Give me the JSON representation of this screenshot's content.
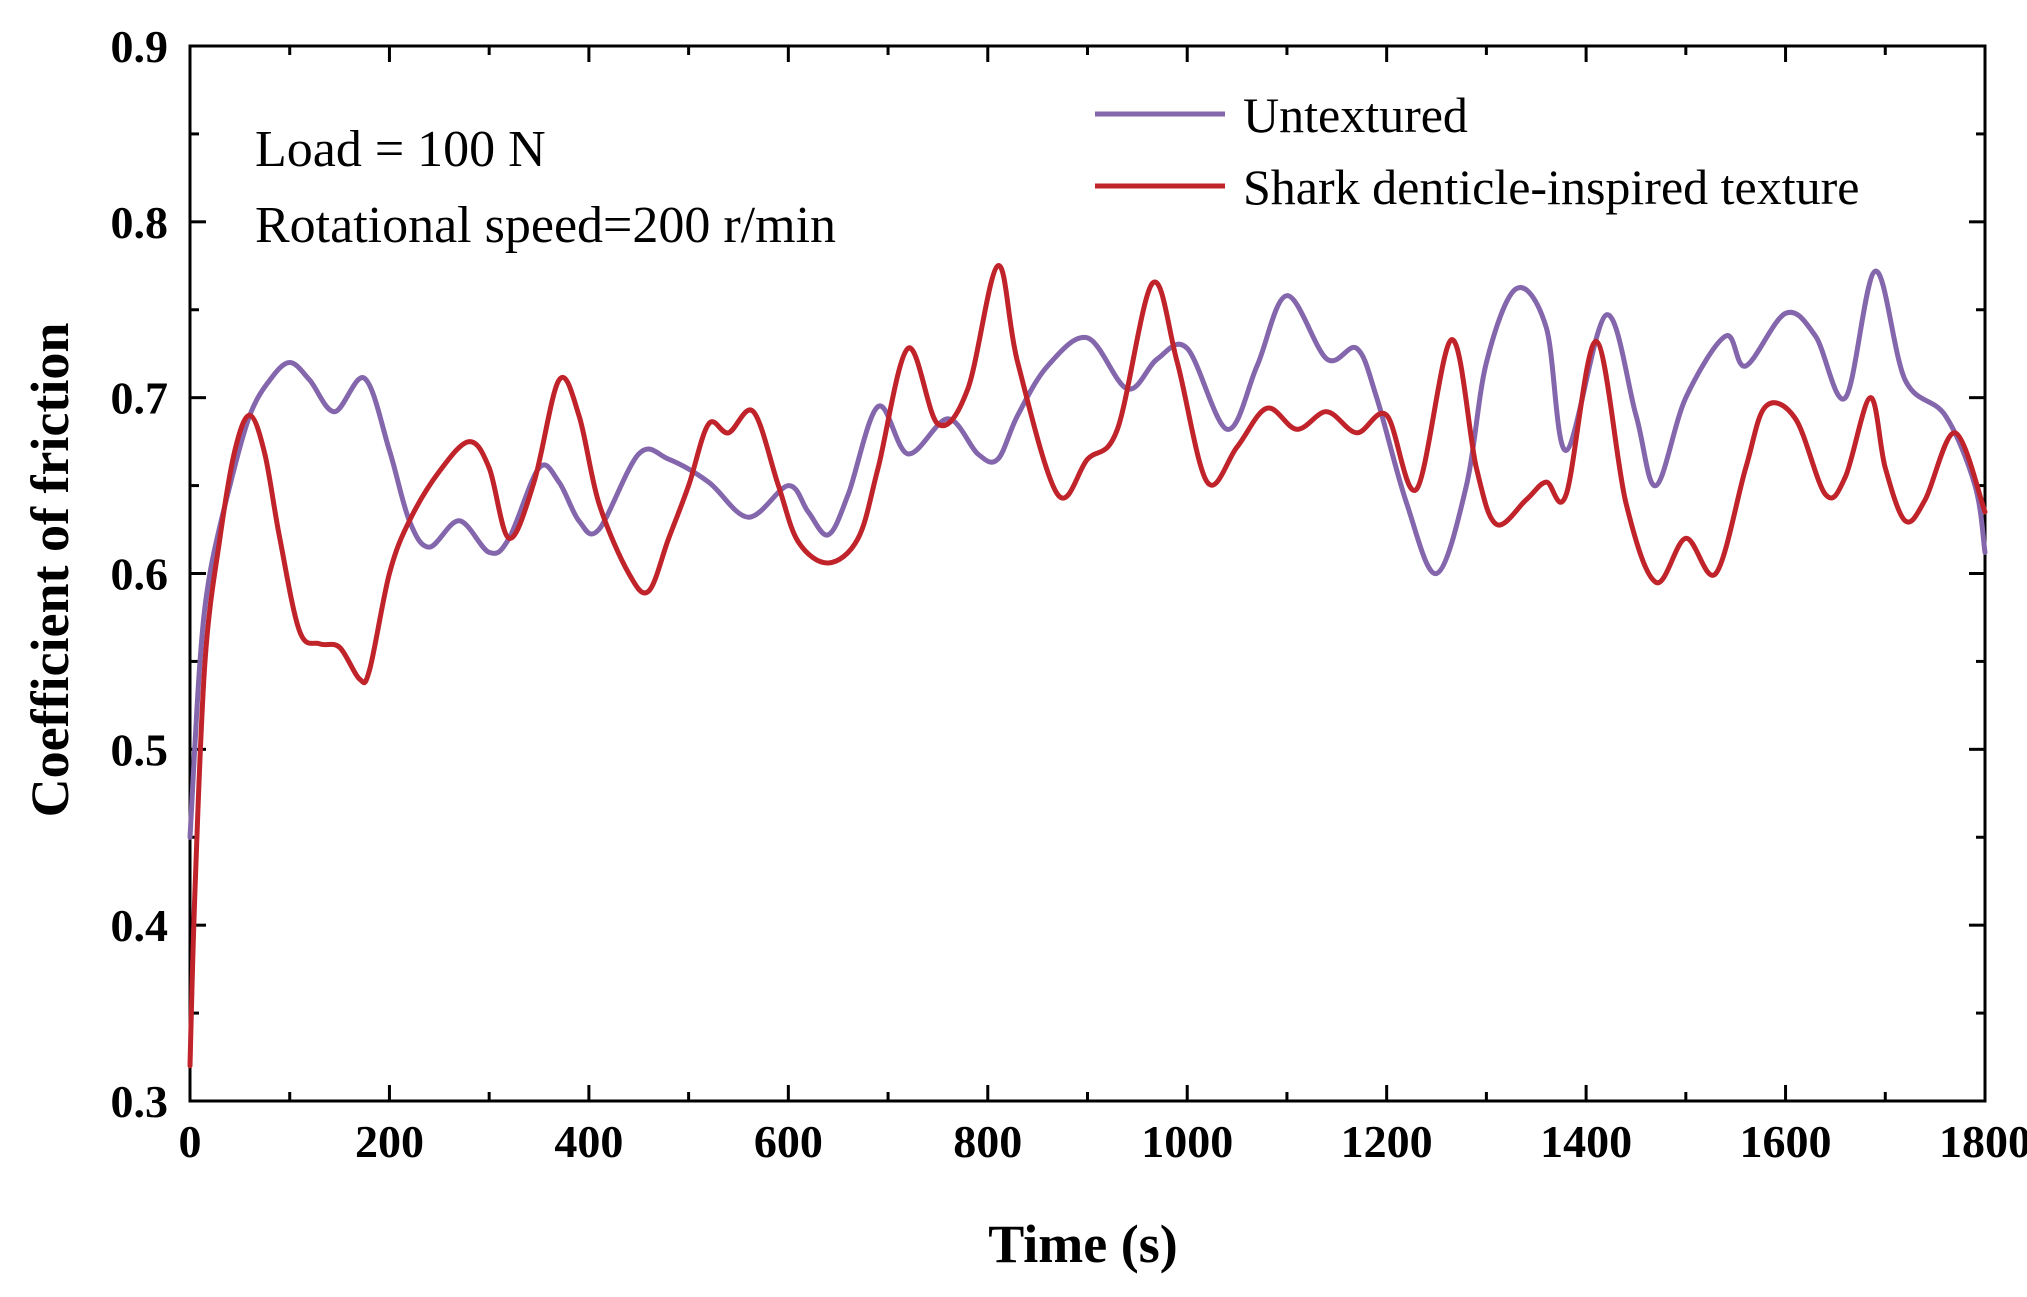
{
  "chart_data": {
    "type": "line",
    "title": "",
    "xlabel": "Time (s)",
    "ylabel": "Coefficient of friction",
    "xlim": [
      0,
      1800
    ],
    "ylim": [
      0.3,
      0.9
    ],
    "x_ticks": [
      0,
      200,
      400,
      600,
      800,
      1000,
      1200,
      1400,
      1600,
      1800
    ],
    "y_ticks": [
      0.3,
      0.4,
      0.5,
      0.6,
      0.7,
      0.8,
      0.9
    ],
    "x_tick_labels": [
      "0",
      "200",
      "400",
      "600",
      "800",
      "1000",
      "1200",
      "1400",
      "1600",
      "1800"
    ],
    "y_tick_labels": [
      "0.3",
      "0.4",
      "0.5",
      "0.6",
      "0.7",
      "0.8",
      "0.9"
    ],
    "annotations": [
      "Load = 100 N",
      "Rotational speed=200 r/min"
    ],
    "legend_position": "top-right",
    "series": [
      {
        "name": "Untextured",
        "color": "#8466ad",
        "x": [
          0,
          10,
          20,
          40,
          60,
          80,
          100,
          120,
          145,
          175,
          200,
          220,
          240,
          270,
          300,
          320,
          350,
          370,
          390,
          410,
          450,
          480,
          520,
          560,
          600,
          620,
          640,
          660,
          690,
          720,
          760,
          790,
          810,
          830,
          860,
          900,
          940,
          970,
          1000,
          1040,
          1070,
          1100,
          1140,
          1170,
          1190,
          1220,
          1250,
          1280,
          1300,
          1330,
          1360,
          1380,
          1420,
          1450,
          1470,
          1500,
          1540,
          1560,
          1600,
          1630,
          1660,
          1690,
          1720,
          1760,
          1790,
          1800
        ],
        "values": [
          0.45,
          0.55,
          0.6,
          0.65,
          0.69,
          0.71,
          0.72,
          0.71,
          0.692,
          0.711,
          0.67,
          0.63,
          0.615,
          0.63,
          0.612,
          0.62,
          0.66,
          0.652,
          0.63,
          0.625,
          0.668,
          0.665,
          0.652,
          0.632,
          0.65,
          0.635,
          0.622,
          0.645,
          0.695,
          0.668,
          0.688,
          0.668,
          0.665,
          0.69,
          0.718,
          0.734,
          0.705,
          0.722,
          0.728,
          0.682,
          0.718,
          0.758,
          0.722,
          0.728,
          0.7,
          0.64,
          0.6,
          0.65,
          0.72,
          0.762,
          0.74,
          0.67,
          0.747,
          0.69,
          0.65,
          0.7,
          0.735,
          0.718,
          0.748,
          0.735,
          0.7,
          0.772,
          0.71,
          0.69,
          0.65,
          0.612
        ]
      },
      {
        "name": "Shark denticle-inspired texture",
        "color": "#c0232a",
        "x": [
          0,
          5,
          15,
          30,
          45,
          60,
          75,
          90,
          110,
          130,
          150,
          170,
          180,
          200,
          220,
          250,
          280,
          300,
          320,
          345,
          370,
          390,
          410,
          440,
          460,
          480,
          500,
          520,
          540,
          565,
          590,
          610,
          640,
          670,
          690,
          720,
          750,
          780,
          810,
          830,
          870,
          900,
          930,
          965,
          990,
          1020,
          1050,
          1080,
          1110,
          1140,
          1170,
          1200,
          1230,
          1265,
          1290,
          1310,
          1340,
          1360,
          1380,
          1410,
          1440,
          1470,
          1500,
          1530,
          1560,
          1580,
          1610,
          1640,
          1660,
          1685,
          1700,
          1720,
          1740,
          1770,
          1800
        ],
        "values": [
          0.32,
          0.42,
          0.55,
          0.62,
          0.67,
          0.69,
          0.668,
          0.62,
          0.567,
          0.56,
          0.558,
          0.54,
          0.545,
          0.6,
          0.63,
          0.658,
          0.675,
          0.66,
          0.62,
          0.652,
          0.71,
          0.69,
          0.64,
          0.6,
          0.59,
          0.62,
          0.65,
          0.685,
          0.68,
          0.692,
          0.65,
          0.618,
          0.606,
          0.62,
          0.66,
          0.728,
          0.685,
          0.705,
          0.775,
          0.72,
          0.645,
          0.665,
          0.682,
          0.765,
          0.72,
          0.652,
          0.672,
          0.694,
          0.682,
          0.692,
          0.68,
          0.69,
          0.648,
          0.733,
          0.66,
          0.628,
          0.642,
          0.652,
          0.645,
          0.732,
          0.64,
          0.595,
          0.62,
          0.6,
          0.66,
          0.695,
          0.688,
          0.645,
          0.655,
          0.7,
          0.66,
          0.63,
          0.642,
          0.68,
          0.635
        ]
      }
    ]
  }
}
